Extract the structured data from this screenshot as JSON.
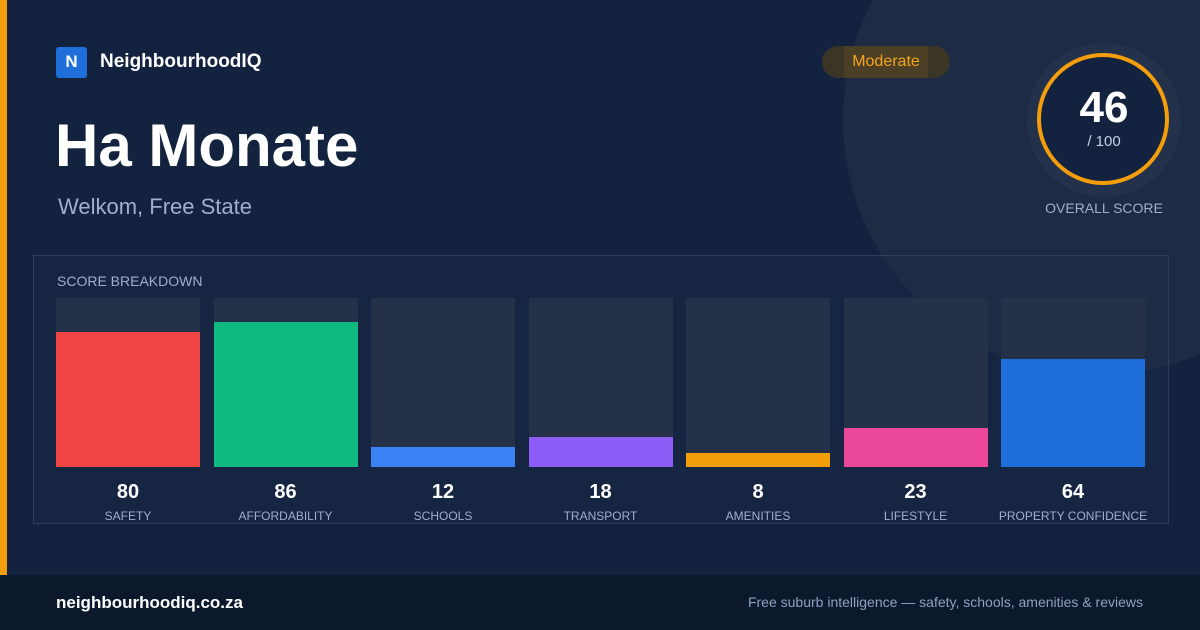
{
  "brand": {
    "logo_letter": "N",
    "name": "NeighbourhoodIQ"
  },
  "suburb": {
    "name": "Ha Monate",
    "location": "Welkom, Free State"
  },
  "rating_badge": "Moderate",
  "overall_score": {
    "value": "46",
    "max_label": "/ 100",
    "caption": "OVERALL SCORE",
    "fraction": 0.46
  },
  "colors": {
    "accent": "#f59e0b",
    "background": "#13233f"
  },
  "chart_data": {
    "type": "bar",
    "title": "SCORE BREAKDOWN",
    "categories": [
      "SAFETY",
      "AFFORDABILITY",
      "SCHOOLS",
      "TRANSPORT",
      "AMENITIES",
      "LIFESTYLE",
      "PROPERTY CONFIDENCE"
    ],
    "values": [
      80,
      86,
      12,
      18,
      8,
      23,
      64
    ],
    "colors": [
      "#ef4444",
      "#10b981",
      "#3b82f6",
      "#8b5cf6",
      "#f59e0b",
      "#ec4899",
      "#1e6fd9"
    ],
    "ylim": [
      0,
      100
    ],
    "grid": false
  },
  "footer": {
    "domain": "neighbourhoodiq.co.za",
    "tagline": "Free suburb intelligence — safety, schools, amenities & reviews"
  }
}
